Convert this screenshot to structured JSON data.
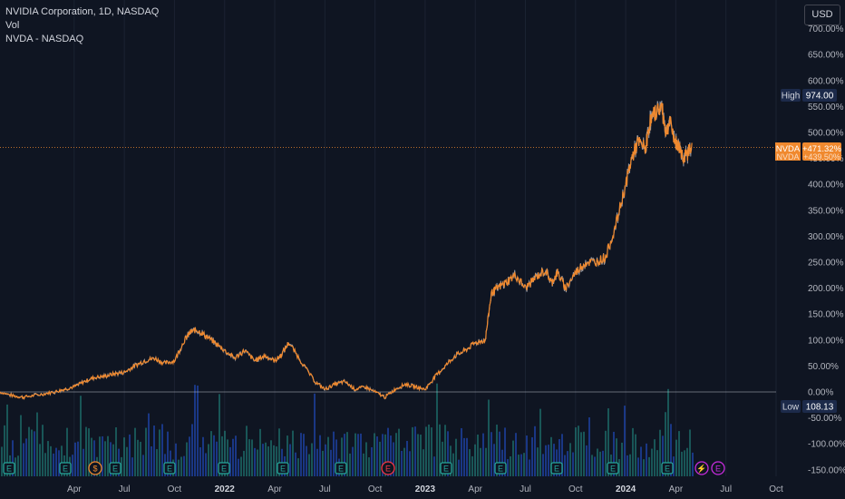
{
  "header": {
    "symbol_line": "NVIDIA Corporation, 1D, NASDAQ",
    "volume_label": "Vol",
    "compare_label": "NVDA - NASDAQ",
    "currency_button": "USD"
  },
  "markers": {
    "high_label": "High",
    "high_value": "974.00",
    "low_label": "Low",
    "low_value": "108.13",
    "symbol_tag": "NVDA",
    "symbol_value": "+471.32%",
    "symbol_tag2": "NVDA",
    "symbol_value2": "+439.50%"
  },
  "colors": {
    "background": "#0f1522",
    "price_line": "#f0892e",
    "compare_line": "#9598a1",
    "vol_up": "#26a69a",
    "vol_down": "#2962ff",
    "high_badge": "#1c2a4a"
  },
  "event_icons": [
    {
      "type": "E",
      "name": "earnings-icon",
      "color": "#26a69a"
    },
    {
      "type": "E",
      "name": "earnings-icon",
      "color": "#26a69a"
    },
    {
      "type": "$",
      "name": "dividend-icon",
      "color": "#f0892e"
    },
    {
      "type": "E",
      "name": "earnings-icon",
      "color": "#26a69a"
    },
    {
      "type": "E",
      "name": "earnings-icon",
      "color": "#26a69a"
    },
    {
      "type": "E",
      "name": "earnings-icon",
      "color": "#26a69a"
    },
    {
      "type": "E",
      "name": "earnings-icon",
      "color": "#26a69a"
    },
    {
      "type": "E",
      "name": "earnings-icon",
      "color": "#26a69a"
    },
    {
      "type": "E",
      "name": "earnings-icon",
      "color": "#f23645"
    },
    {
      "type": "E",
      "name": "earnings-icon",
      "color": "#26a69a"
    },
    {
      "type": "E",
      "name": "earnings-icon",
      "color": "#26a69a"
    },
    {
      "type": "E",
      "name": "earnings-icon",
      "color": "#26a69a"
    },
    {
      "type": "E",
      "name": "earnings-icon",
      "color": "#26a69a"
    },
    {
      "type": "E",
      "name": "earnings-icon",
      "color": "#26a69a"
    },
    {
      "type": "⚡",
      "name": "split-icon",
      "color": "#c62bdc"
    },
    {
      "type": "E",
      "name": "earnings-icon",
      "color": "#c62bdc"
    }
  ],
  "chart_data": {
    "type": "line",
    "title": "NVIDIA Corporation, 1D, NASDAQ",
    "y_unit": "%",
    "ylim": [
      -165,
      720
    ],
    "y_ticks": [
      "700.00%",
      "650.00%",
      "600.00%",
      "550.00%",
      "500.00%",
      "450.00%",
      "400.00%",
      "350.00%",
      "300.00%",
      "250.00%",
      "200.00%",
      "150.00%",
      "100.00%",
      "50.00%",
      "0.00%",
      "-50.00%",
      "-100.00%",
      "-150.00%"
    ],
    "y_tick_values": [
      700,
      650,
      600,
      550,
      500,
      450,
      400,
      350,
      300,
      250,
      200,
      150,
      100,
      50,
      0,
      -50,
      -100,
      -150
    ],
    "x_ticks": [
      {
        "label": "Apr",
        "t": 0.25
      },
      {
        "label": "Jul",
        "t": 0.5
      },
      {
        "label": "Oct",
        "t": 0.75
      },
      {
        "label": "2022",
        "t": 1.0,
        "bold": true
      },
      {
        "label": "Apr",
        "t": 1.25
      },
      {
        "label": "Jul",
        "t": 1.5
      },
      {
        "label": "Oct",
        "t": 1.75
      },
      {
        "label": "2023",
        "t": 2.0,
        "bold": true
      },
      {
        "label": "Apr",
        "t": 2.25
      },
      {
        "label": "Jul",
        "t": 2.5
      },
      {
        "label": "Oct",
        "t": 2.75
      },
      {
        "label": "2024",
        "t": 3.0,
        "bold": true
      },
      {
        "label": "Apr",
        "t": 3.25
      },
      {
        "label": "Jul",
        "t": 3.5
      },
      {
        "label": "Oct",
        "t": 3.75
      }
    ],
    "xlim": [
      -0.12,
      3.75
    ],
    "series": [
      {
        "name": "NVDA",
        "x": [
          -0.12,
          -0.05,
          0.0,
          0.08,
          0.15,
          0.2,
          0.25,
          0.3,
          0.35,
          0.4,
          0.45,
          0.5,
          0.55,
          0.6,
          0.65,
          0.7,
          0.75,
          0.8,
          0.83,
          0.86,
          0.9,
          0.95,
          1.0,
          1.05,
          1.1,
          1.15,
          1.2,
          1.25,
          1.28,
          1.32,
          1.38,
          1.45,
          1.5,
          1.55,
          1.6,
          1.65,
          1.7,
          1.75,
          1.8,
          1.85,
          1.9,
          1.95,
          2.0,
          2.05,
          2.1,
          2.15,
          2.2,
          2.25,
          2.3,
          2.33,
          2.36,
          2.4,
          2.45,
          2.5,
          2.55,
          2.6,
          2.63,
          2.66,
          2.7,
          2.75,
          2.8,
          2.85,
          2.9,
          2.95,
          3.0,
          3.03,
          3.06,
          3.1,
          3.12,
          3.15,
          3.18,
          3.2,
          3.22,
          3.25,
          3.27,
          3.29,
          3.31,
          3.33
        ],
        "y": [
          0,
          -8,
          -10,
          -5,
          0,
          5,
          10,
          20,
          28,
          30,
          35,
          38,
          50,
          60,
          65,
          55,
          60,
          100,
          115,
          120,
          110,
          95,
          80,
          65,
          80,
          60,
          70,
          60,
          70,
          95,
          60,
          20,
          5,
          15,
          20,
          5,
          10,
          0,
          -10,
          5,
          15,
          10,
          5,
          30,
          50,
          70,
          80,
          95,
          100,
          190,
          200,
          210,
          225,
          200,
          220,
          235,
          210,
          230,
          200,
          230,
          250,
          250,
          260,
          320,
          400,
          450,
          480,
          470,
          520,
          540,
          550,
          500,
          520,
          480,
          470,
          450,
          460,
          480
        ]
      }
    ],
    "volume_note": "Vol histogram at bottom (teal/blue bars)"
  }
}
